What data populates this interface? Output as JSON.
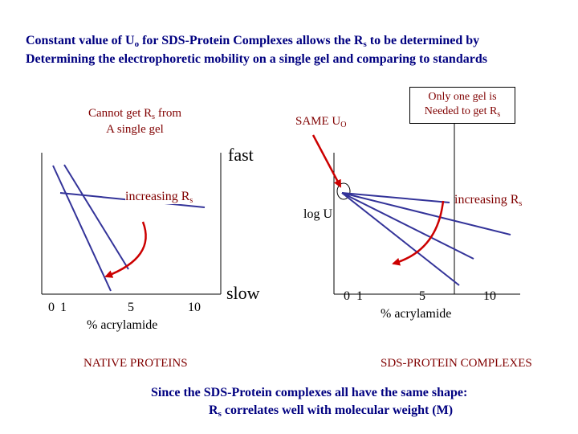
{
  "title": {
    "line1_a": "Constant value of U",
    "line1_sub1": "o",
    "line1_b": " for SDS-Protein Complexes allows the R",
    "line1_sub2": "s",
    "line1_c": " to be determined by",
    "line2": "Determining  the electrophoretic mobility on a single gel  and comparing to standards"
  },
  "left_note": {
    "line1_a": "Cannot get R",
    "line1_sub": "s",
    "line1_b": " from",
    "line2": "A single gel"
  },
  "same_u": {
    "a": "SAME U",
    "sub": "O"
  },
  "box_note": {
    "line1": "Only one gel is",
    "line2_a": "Needed to get R",
    "line2_sub": "s"
  },
  "axis": {
    "fast": "fast",
    "slow": "slow",
    "log_u": "log U"
  },
  "left_chart": {
    "increasing_a": "increasing R",
    "increasing_sub": "s",
    "tick_0": "0",
    "tick_1": "1",
    "tick_5": "5",
    "tick_10": "10",
    "xlabel": "% acrylamide",
    "caption": "NATIVE PROTEINS"
  },
  "right_chart": {
    "increasing_a": "increasing R",
    "increasing_sub": "s",
    "tick_0": "0",
    "tick_1": "1",
    "tick_5": "5",
    "tick_10": "10",
    "xlabel": "% acrylamide",
    "caption": "SDS-PROTEIN COMPLEXES"
  },
  "footer": {
    "line1": "Since the SDS-Protein complexes all have the same shape:",
    "line2_a": "R",
    "line2_sub": "s",
    "line2_b": " correlates well with molecular weight (M)"
  },
  "colors": {
    "title": "#000080",
    "note": "#800000",
    "lines": "#333399",
    "arrow": "#cc0000"
  }
}
